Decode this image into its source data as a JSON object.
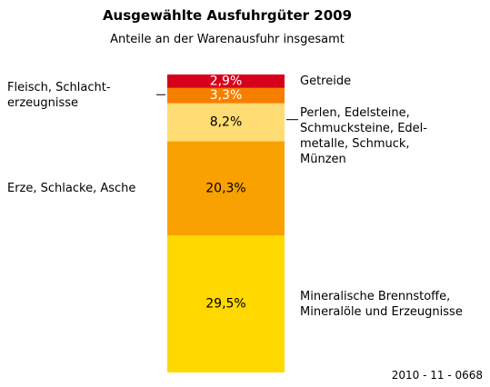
{
  "chart_data": {
    "type": "stacked_bar",
    "title": "Ausgewählte Ausfuhrgüter 2009",
    "subtitle": "Anteile an der Warenausfuhr insgesamt",
    "note": "2010 - 11 - 0668",
    "categories": [
      null
    ],
    "series": [
      {
        "name": "Mineralische Brennstoffe,\nMineralöle und Erzeugnisse",
        "color": "#ffd800",
        "values": [
          29.5
        ],
        "value_labels": [
          "29,5%"
        ]
      },
      {
        "name": "Erze, Schlacke, Asche",
        "color": "#f9a100",
        "values": [
          20.3
        ],
        "value_labels": [
          "20,3%"
        ]
      },
      {
        "name": "Perlen, Edelsteine,\nSchmucksteine, Edel-\nmetalle, Schmuck,\nMünzen",
        "color": "#ffdc74",
        "values": [
          8.2
        ],
        "value_labels": [
          "8,2%"
        ]
      },
      {
        "name": "Fleisch, Schlacht-\nerzeugnisse",
        "color": "#f77f00",
        "values": [
          3.3
        ],
        "value_labels": [
          "3,3%"
        ]
      },
      {
        "name": "Getreide",
        "color": "#d7001c",
        "values": [
          2.9
        ],
        "value_labels": [
          "2,9%"
        ]
      }
    ]
  }
}
